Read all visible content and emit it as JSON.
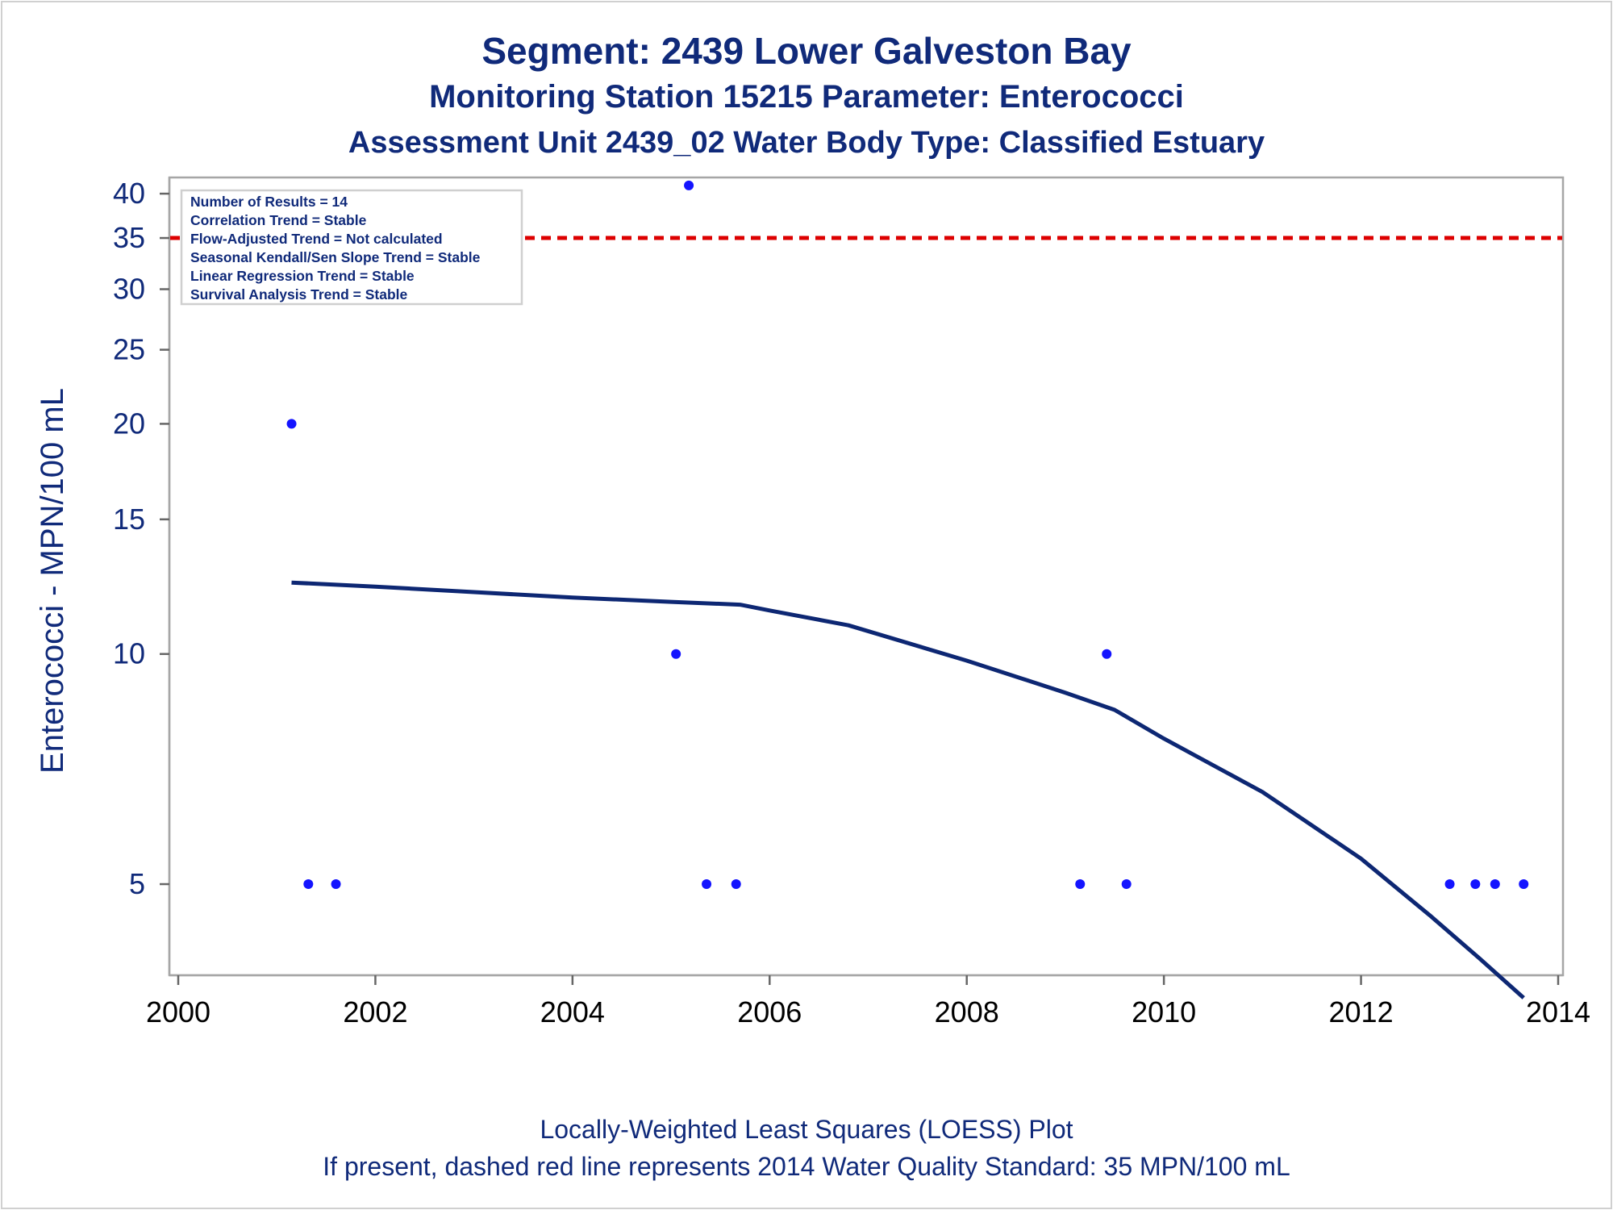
{
  "title": "Segment: 2439  Lower Galveston Bay",
  "subtitle": "Monitoring Station 15215 Parameter: Enterococci",
  "subtitle2": "Assessment Unit 2439_02   Water Body Type: Classified Estuary",
  "footnotes": [
    "Locally-Weighted Least Squares (LOESS) Plot",
    "If present, dashed red line represents 2014 Water Quality Standard: 35 MPN/100 mL"
  ],
  "colors": {
    "text": "#102a7a",
    "points": "#1414ff",
    "loess": "#0d2773",
    "standard": "#dd0000",
    "frame": "#a6a6a6"
  },
  "chart_data": {
    "type": "scatter",
    "title": "Segment: 2439  Lower Galveston Bay",
    "xlabel": "",
    "ylabel": "Enterococci - MPN/100 mL",
    "yscale": "log",
    "xlim": [
      2000,
      2014
    ],
    "ylim": [
      3.8,
      42
    ],
    "x_ticks": [
      2000,
      2002,
      2004,
      2006,
      2008,
      2010,
      2012,
      2014
    ],
    "y_ticks": [
      5,
      10,
      15,
      20,
      25,
      30,
      35,
      40
    ],
    "grid": false,
    "legend": "inset top-left",
    "series": [
      {
        "kind": "points",
        "x": [
          2001.15,
          2001.32,
          2001.6,
          2005.05,
          2005.18,
          2005.36,
          2005.66,
          2009.15,
          2009.42,
          2009.62,
          2012.9,
          2013.16,
          2013.36,
          2013.65
        ],
        "y": [
          20,
          5,
          5,
          10,
          41,
          5,
          5,
          5,
          10,
          5,
          5,
          5,
          5,
          5
        ]
      },
      {
        "kind": "loess",
        "x": [
          2001.15,
          2002.0,
          2003.0,
          2004.0,
          2005.0,
          2005.7,
          2006.0,
          2006.8,
          2008.0,
          2009.0,
          2009.5,
          2010.0,
          2011.0,
          2012.0,
          2012.7,
          2013.2,
          2013.65
        ],
        "y": [
          12.4,
          12.25,
          12.05,
          11.85,
          11.7,
          11.6,
          11.4,
          10.9,
          9.8,
          8.9,
          8.45,
          7.75,
          6.6,
          5.4,
          4.55,
          4.0,
          3.55
        ]
      }
    ],
    "reference_line": {
      "y": 35
    },
    "inset_legend": [
      "Number of Results = 14",
      "Correlation Trend = Stable",
      "Flow-Adjusted Trend = Not calculated",
      "Seasonal Kendall/Sen Slope Trend = Stable",
      "Linear Regression Trend = Stable",
      "Survival Analysis Trend = Stable"
    ]
  }
}
